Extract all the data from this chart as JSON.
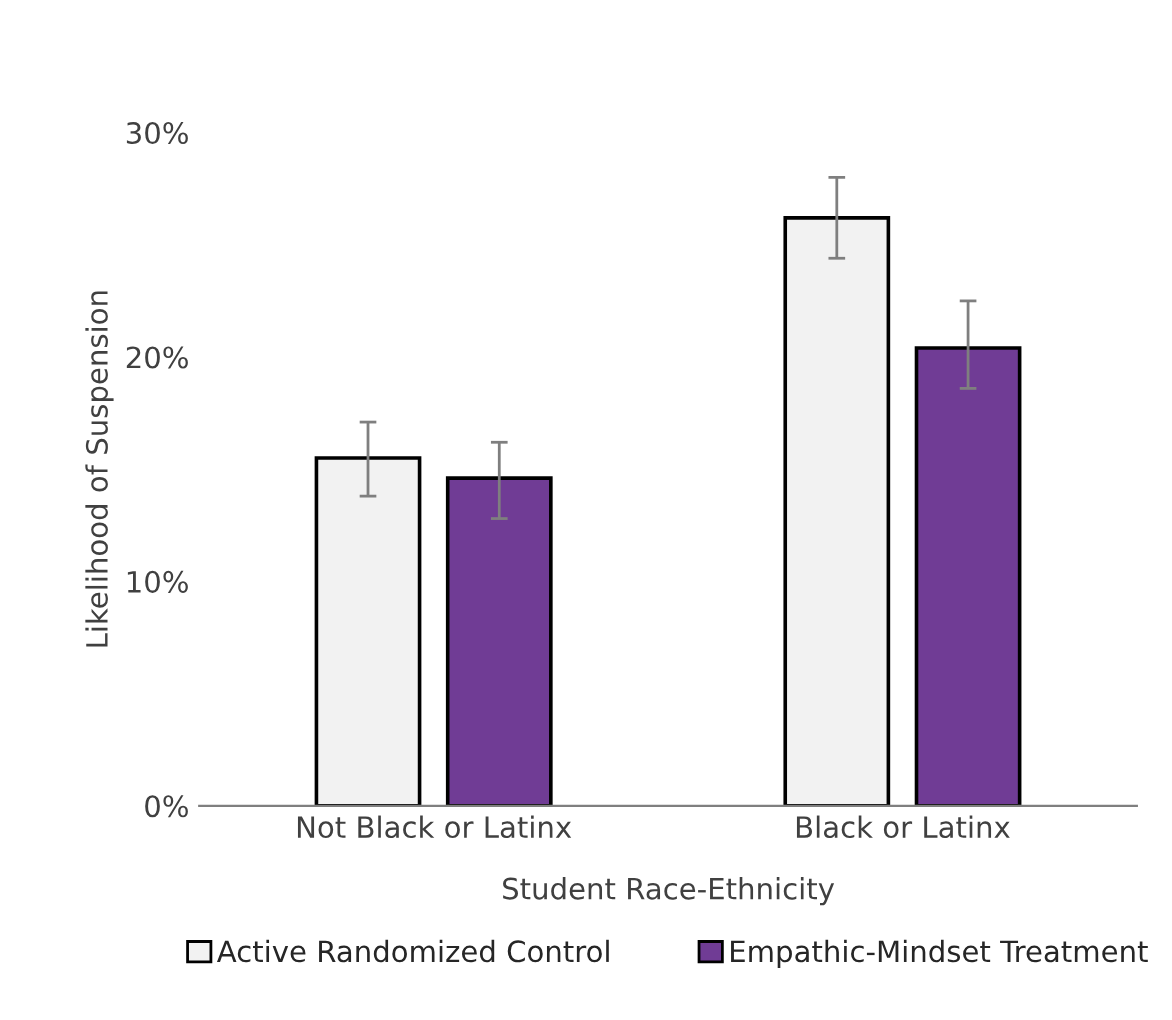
{
  "chart_data": {
    "type": "bar",
    "xlabel": "Student Race-Ethnicity",
    "ylabel": "Likelihood of Suspension",
    "categories": [
      "Not Black or Latinx",
      "Black or Latinx"
    ],
    "series": [
      {
        "name": "Active Randomized Control",
        "color": "#f2f2f2",
        "values": [
          15.5,
          26.2
        ],
        "errors": [
          [
            13.8,
            17.1
          ],
          [
            24.4,
            28.0
          ]
        ]
      },
      {
        "name": "Empathic-Mindset Treatment",
        "color": "#703c95",
        "values": [
          14.6,
          20.4
        ],
        "errors": [
          [
            12.8,
            16.2
          ],
          [
            18.6,
            22.5
          ]
        ]
      }
    ],
    "ylim": [
      0,
      30
    ],
    "yticks": [
      {
        "value": 0,
        "label": "0%"
      },
      {
        "value": 10,
        "label": "10%"
      },
      {
        "value": 20,
        "label": "20%"
      },
      {
        "value": 30,
        "label": "30%"
      }
    ],
    "grid": false,
    "legend": "bottom"
  }
}
